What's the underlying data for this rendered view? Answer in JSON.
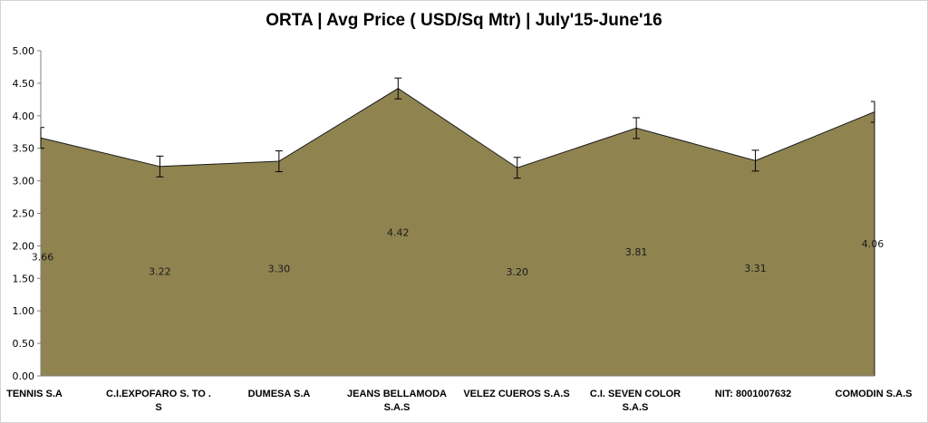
{
  "chart_data": {
    "type": "area",
    "title": "ORTA | Avg Price ( USD/Sq Mtr) | July'15-June'16",
    "xlabel": "",
    "ylabel": "",
    "ylim": [
      0,
      5
    ],
    "yticks": [
      "0.00",
      "0.50",
      "1.00",
      "1.50",
      "2.00",
      "2.50",
      "3.00",
      "3.50",
      "4.00",
      "4.50",
      "5.00"
    ],
    "categories": [
      "TENNIS S.A",
      "C.I.EXPOFARO S. TO . S",
      "DUMESA S.A",
      "JEANS BELLAMODA S.A.S",
      "VELEZ CUEROS S.A.S",
      "C.I. SEVEN COLOR S.A.S",
      "NIT: 8001007632",
      "COMODIN S.A.S"
    ],
    "values": [
      3.66,
      3.22,
      3.3,
      4.42,
      3.2,
      3.81,
      3.31,
      4.06
    ],
    "data_labels": [
      "3.66",
      "3.22",
      "3.30",
      "4.42",
      "3.20",
      "3.81",
      "3.31",
      "4.06"
    ],
    "error_bars": [
      0.16,
      0.16,
      0.16,
      0.16,
      0.16,
      0.16,
      0.16,
      0.16
    ],
    "fill_color": "#8f8450",
    "line_color": "#1a1a1a",
    "grid": false,
    "legend": "none"
  }
}
